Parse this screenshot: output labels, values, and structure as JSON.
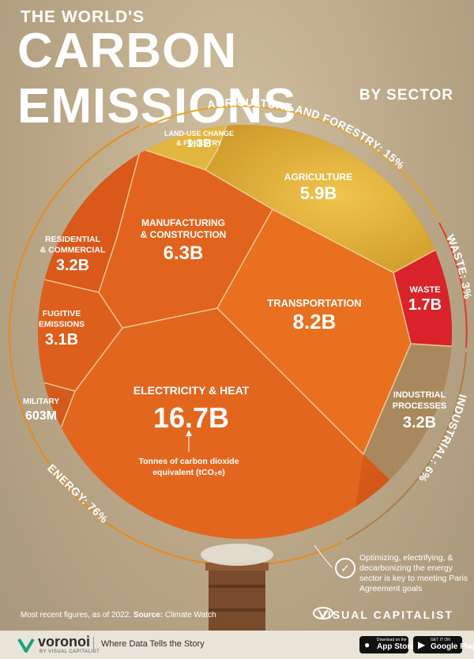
{
  "header": {
    "line1": "THE WORLD'S",
    "title": "CARBON EMISSIONS",
    "subtitle": "BY SECTOR"
  },
  "chart_data": {
    "type": "treemap",
    "title": "The World's Carbon Emissions by Sector",
    "unit": "Tonnes of carbon dioxide equivalent (tCO₂e)",
    "groups": [
      {
        "name": "AGRICULTURE AND FORESTRY",
        "share": "15%",
        "label": "AGRICULTURE AND FORESTRY: 15%"
      },
      {
        "name": "WASTE",
        "share": "3%",
        "label": "WASTE: 3%"
      },
      {
        "name": "INDUSTRIAL",
        "share": "6%",
        "label": "INDUSTRIAL: 6%"
      },
      {
        "name": "ENERGY",
        "share": "76%",
        "label": "ENERGY: 76%"
      }
    ],
    "sectors": [
      {
        "name": "LAND-USE CHANGE & FORESTRY",
        "lines": [
          "LAND-USE CHANGE",
          "& FORESTRY"
        ],
        "value": "1.3B",
        "group": "AGRICULTURE AND FORESTRY"
      },
      {
        "name": "AGRICULTURE",
        "lines": [
          "AGRICULTURE"
        ],
        "value": "5.9B",
        "group": "AGRICULTURE AND FORESTRY"
      },
      {
        "name": "WASTE",
        "lines": [
          "WASTE"
        ],
        "value": "1.7B",
        "group": "WASTE"
      },
      {
        "name": "INDUSTRIAL PROCESSES",
        "lines": [
          "INDUSTRIAL",
          "PROCESSES"
        ],
        "value": "3.2B",
        "group": "INDUSTRIAL"
      },
      {
        "name": "MANUFACTURING & CONSTRUCTION",
        "lines": [
          "MANUFACTURING",
          "& CONSTRUCTION"
        ],
        "value": "6.3B",
        "group": "ENERGY"
      },
      {
        "name": "TRANSPORTATION",
        "lines": [
          "TRANSPORTATION"
        ],
        "value": "8.2B",
        "group": "ENERGY"
      },
      {
        "name": "RESIDENTIAL & COMMERCIAL",
        "lines": [
          "RESIDENTIAL",
          "& COMMERCIAL"
        ],
        "value": "3.2B",
        "group": "ENERGY"
      },
      {
        "name": "FUGITIVE EMISSIONS",
        "lines": [
          "FUGITIVE",
          "EMISSIONS"
        ],
        "value": "3.1B",
        "group": "ENERGY"
      },
      {
        "name": "MILITARY",
        "lines": [
          "MILITARY"
        ],
        "value": "603M",
        "group": "ENERGY"
      },
      {
        "name": "ELECTRICITY & HEAT",
        "lines": [
          "ELECTRICITY & HEAT"
        ],
        "value": "16.7B",
        "group": "ENERGY"
      }
    ],
    "annotation": [
      "Tonnes of carbon dioxide",
      "equivalent (tCO₂e)"
    ]
  },
  "note": "Optimizing, electrifying, & decarbonizing the energy sector is key to meeting Paris Agreement goals",
  "source": {
    "prefix": "Most recent figures, as of 2022.",
    "label": "Source:",
    "value": "Climate Watch"
  },
  "brand": "VISUAL CAPITALIST",
  "footer": {
    "name": "voronoi",
    "by": "BY VISUAL CAPITALIST",
    "tagline": "Where Data Tells the Story",
    "appstore_small": "Download on the",
    "appstore": "App Store",
    "googleplay_small": "GET IT ON",
    "googleplay": "Google Play"
  },
  "colors": {
    "agri": "#e3b23a",
    "energy": "#e5641c",
    "waste": "#d9232a",
    "industrial": "#a9885d",
    "ring": "#e8891f"
  }
}
